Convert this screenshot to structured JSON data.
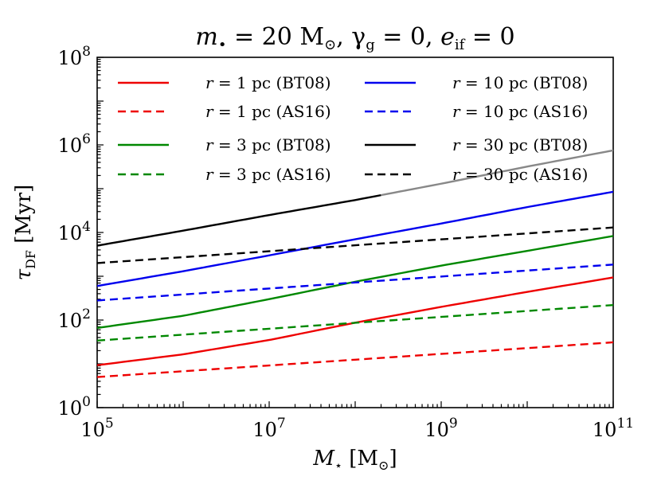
{
  "chart_data": {
    "type": "line",
    "title": "m• = 20 M⊙, γg = 0, eif = 0",
    "title_parts": {
      "m_symbol": "m",
      "m_sub": "•",
      "m_eq": " = 20 M",
      "m_sun": "⊙",
      "sep1": ", ",
      "gamma": "γ",
      "gamma_sub": "g",
      "gamma_eq": " = 0, ",
      "e_symbol": "e",
      "e_sub": "if",
      "e_eq": " = 0"
    },
    "xlabel": "M⋆ [M⊙]",
    "xlabel_parts": {
      "sym": "M",
      "sub": "⋆",
      "unit_open": " [M",
      "unit_sun": "⊙",
      "unit_close": "]"
    },
    "ylabel": "τDF [Myr]",
    "ylabel_parts": {
      "sym": "τ",
      "sub": "DF",
      "unit": " [Myr]"
    },
    "xscale": "log",
    "yscale": "log",
    "xlim": [
      100000,
      100000000000
    ],
    "ylim": [
      1,
      100000000
    ],
    "x_ticks": [
      {
        "value": 100000,
        "base": "10",
        "exp": "5"
      },
      {
        "value": 10000000,
        "base": "10",
        "exp": "7"
      },
      {
        "value": 1000000000,
        "base": "10",
        "exp": "9"
      },
      {
        "value": 100000000000,
        "base": "10",
        "exp": "11"
      }
    ],
    "y_ticks": [
      {
        "value": 1,
        "base": "10",
        "exp": "0"
      },
      {
        "value": 100,
        "base": "10",
        "exp": "2"
      },
      {
        "value": 10000,
        "base": "10",
        "exp": "4"
      },
      {
        "value": 1000000,
        "base": "10",
        "exp": "6"
      },
      {
        "value": 100000000,
        "base": "10",
        "exp": "8"
      }
    ],
    "legend_position": "upper left, two columns",
    "legend_label_parts": {
      "sym": "r",
      "eq": " = "
    },
    "series": [
      {
        "name": "r = 1 pc (BT08)",
        "r_value": "1 pc (BT08)",
        "color": "#ee0000",
        "dash": "solid",
        "x": [
          100000,
          1000000,
          10000000,
          100000000,
          1000000000,
          10000000000,
          100000000000
        ],
        "y": [
          9.3,
          16.5,
          35,
          87,
          200,
          440,
          940
        ]
      },
      {
        "name": "r = 1 pc (AS16)",
        "r_value": "1 pc (AS16)",
        "color": "#ee0000",
        "dash": "dashed",
        "x": [
          100000,
          100000000000
        ],
        "y": [
          5,
          31
        ]
      },
      {
        "name": "r = 3 pc (BT08)",
        "r_value": "3 pc (BT08)",
        "color": "#008800",
        "dash": "solid",
        "x": [
          100000,
          1000000,
          10000000,
          100000000,
          1000000000,
          10000000000,
          100000000000
        ],
        "y": [
          66,
          125,
          300,
          750,
          1750,
          3800,
          8300
        ]
      },
      {
        "name": "r = 3 pc (AS16)",
        "r_value": "3 pc (AS16)",
        "color": "#008800",
        "dash": "dashed",
        "x": [
          100000,
          100000000000
        ],
        "y": [
          34,
          220
        ]
      },
      {
        "name": "r = 10 pc (BT08)",
        "r_value": "10 pc (BT08)",
        "color": "#0000ee",
        "dash": "solid",
        "x": [
          100000,
          1000000,
          10000000,
          100000000,
          1000000000,
          10000000000,
          100000000000
        ],
        "y": [
          600,
          1300,
          3000,
          7000,
          16000,
          38000,
          85000
        ]
      },
      {
        "name": "r = 10 pc (AS16)",
        "r_value": "10 pc (AS16)",
        "color": "#0000ee",
        "dash": "dashed",
        "x": [
          100000,
          100000000000
        ],
        "y": [
          280,
          1850
        ]
      },
      {
        "name": "r = 30 pc (BT08)",
        "r_value": "30 pc (BT08)",
        "color": "#000000",
        "dash": "solid",
        "x": [
          100000,
          1000000,
          10000000,
          100000000,
          1000000000,
          10000000000,
          100000000000
        ],
        "y": [
          5000,
          11000,
          25000,
          55000,
          130000,
          320000,
          750000
        ],
        "faded_above_x": 200000000,
        "faded_color": "#888888"
      },
      {
        "name": "r = 30 pc (AS16)",
        "r_value": "30 pc (AS16)",
        "color": "#000000",
        "dash": "dashed",
        "x": [
          100000,
          100000000000
        ],
        "y": [
          2000,
          13000
        ]
      }
    ]
  }
}
